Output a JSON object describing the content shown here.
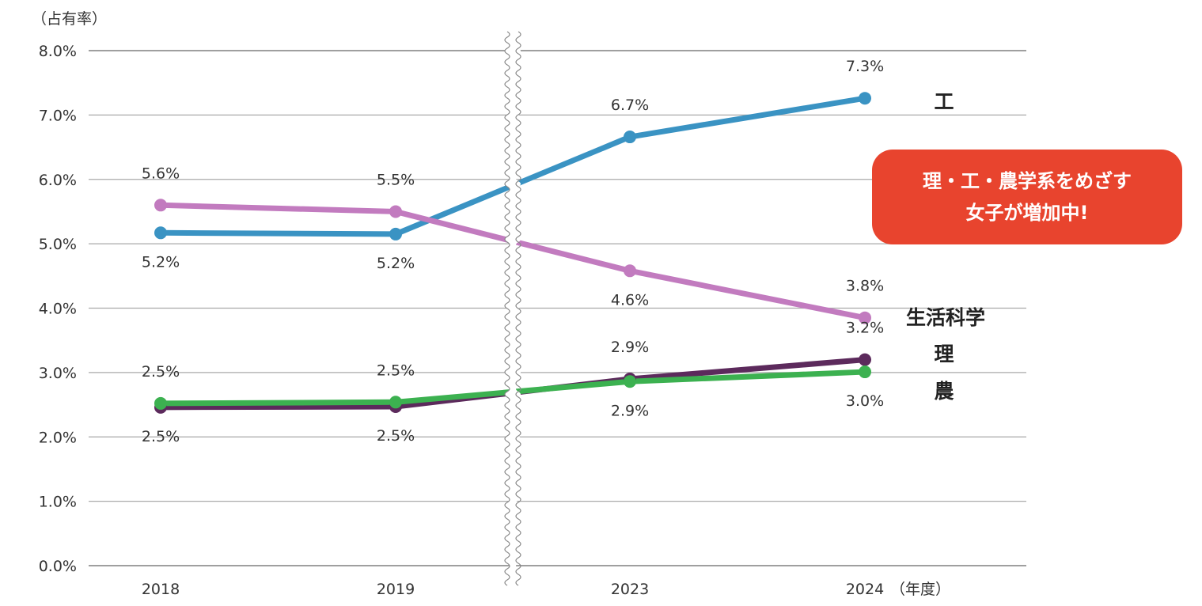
{
  "chart_data": {
    "type": "line",
    "title": "",
    "ylabel": "（占有率）",
    "xlabel": "（年度）",
    "categories": [
      "2018",
      "2019",
      "2023",
      "2024"
    ],
    "axis_break_between": [
      "2019",
      "2023"
    ],
    "ylim": [
      0,
      8
    ],
    "yticks": [
      "0.0%",
      "1.0%",
      "2.0%",
      "3.0%",
      "4.0%",
      "5.0%",
      "6.0%",
      "7.0%",
      "8.0%"
    ],
    "grid": true,
    "series": [
      {
        "name": "工",
        "color": "#3a93c3",
        "values": [
          5.17,
          5.15,
          6.66,
          7.26
        ],
        "labels": [
          "5.2%",
          "5.2%",
          "6.7%",
          "7.3%"
        ]
      },
      {
        "name": "生活科学",
        "color": "#c27bbf",
        "values": [
          5.6,
          5.5,
          4.58,
          3.85
        ],
        "labels": [
          "5.6%",
          "5.5%",
          "4.6%",
          "3.8%"
        ]
      },
      {
        "name": "理",
        "color": "#5c2a5c",
        "values": [
          2.46,
          2.47,
          2.9,
          3.2
        ],
        "labels": [
          "2.5%",
          "2.5%",
          "2.9%",
          "3.2%"
        ]
      },
      {
        "name": "農",
        "color": "#3cb150",
        "values": [
          2.52,
          2.54,
          2.86,
          3.01
        ],
        "labels": [
          "2.5%",
          "2.5%",
          "2.9%",
          "3.0%"
        ]
      }
    ],
    "annotation": {
      "line1": "理・工・農学系をめざす",
      "line2": "女子が増加中!",
      "color": "#e8442e"
    }
  }
}
